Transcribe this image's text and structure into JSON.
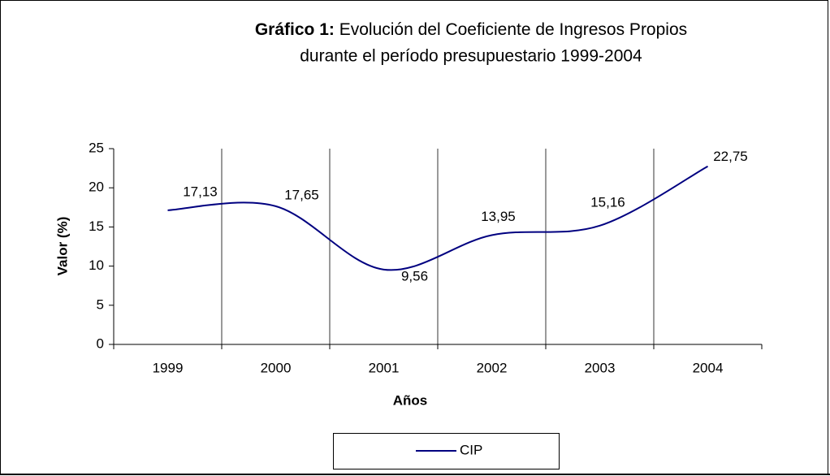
{
  "chart_data": {
    "type": "line",
    "title_prefix": "Gráfico 1:",
    "title": "Evolución del Coeficiente de Ingresos Propios",
    "subtitle": "durante el período presupuestario 1999-2004",
    "x_label": "Años",
    "y_label": "Valor (%)",
    "categories": [
      "1999",
      "2000",
      "2001",
      "2002",
      "2003",
      "2004"
    ],
    "series": [
      {
        "name": "CIP",
        "color": "#000080",
        "values": [
          17.13,
          17.65,
          9.56,
          13.95,
          15.16,
          22.75
        ],
        "value_labels": [
          "17,13",
          "17,65",
          "9,56",
          "13,95",
          "15,16",
          "22,75"
        ]
      }
    ],
    "ylim": [
      0,
      25
    ],
    "yticks": [
      0,
      5,
      10,
      15,
      20,
      25
    ],
    "grid": true,
    "legend": "bottom"
  }
}
